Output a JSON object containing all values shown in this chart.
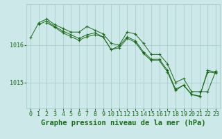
{
  "background_color": "#cce8e8",
  "grid_color": "#aacccc",
  "line_color": "#1a6b1a",
  "marker_color": "#1a6b1a",
  "title": "Graphe pression niveau de la mer (hPa)",
  "yticks": [
    1015,
    1016
  ],
  "ylim": [
    1014.3,
    1017.1
  ],
  "xlim": [
    -0.5,
    23.5
  ],
  "xticks": [
    0,
    1,
    2,
    3,
    4,
    5,
    6,
    7,
    8,
    9,
    10,
    11,
    12,
    13,
    14,
    15,
    16,
    17,
    18,
    19,
    20,
    21,
    22,
    23
  ],
  "series": [
    {
      "x": [
        0,
        1,
        2,
        3,
        4,
        5,
        6,
        7,
        8,
        9,
        10,
        11,
        12,
        13,
        14,
        15,
        16,
        17,
        18,
        19,
        20,
        21,
        22,
        23
      ],
      "y": [
        1016.2,
        1016.6,
        1016.7,
        1016.55,
        1016.45,
        1016.35,
        1016.35,
        1016.5,
        1016.4,
        1016.3,
        1016.05,
        1016.0,
        1016.35,
        1016.3,
        1016.05,
        1015.75,
        1015.75,
        1015.5,
        1015.0,
        1015.1,
        1014.75,
        1014.75,
        1014.75,
        1015.3
      ]
    },
    {
      "x": [
        1,
        2,
        3,
        4,
        5,
        6,
        7,
        8,
        9,
        10,
        11,
        12,
        13,
        14,
        15,
        16,
        17,
        18,
        19,
        20,
        21,
        22,
        23
      ],
      "y": [
        1016.55,
        1016.65,
        1016.5,
        1016.38,
        1016.28,
        1016.18,
        1016.28,
        1016.33,
        1016.22,
        1015.88,
        1015.98,
        1016.22,
        1016.12,
        1015.82,
        1015.62,
        1015.62,
        1015.32,
        1014.82,
        1014.92,
        1014.67,
        1014.62,
        1015.32,
        1015.28
      ]
    },
    {
      "x": [
        2,
        3,
        4,
        5,
        6,
        7,
        8,
        9,
        10,
        11,
        12,
        13,
        14,
        15,
        16,
        17,
        18,
        19,
        20,
        21,
        22,
        23
      ],
      "y": [
        1016.6,
        1016.48,
        1016.33,
        1016.23,
        1016.13,
        1016.23,
        1016.28,
        1016.22,
        1015.88,
        1015.93,
        1016.18,
        1016.08,
        1015.78,
        1015.58,
        1015.58,
        1015.28,
        1014.78,
        1014.93,
        1014.68,
        1014.63,
        1015.28,
        1015.25
      ]
    }
  ],
  "title_fontsize": 7.5,
  "tick_fontsize": 6
}
